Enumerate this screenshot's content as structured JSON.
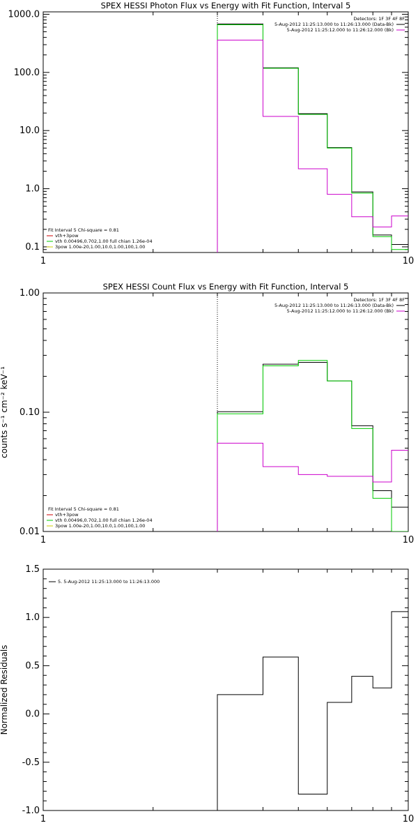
{
  "chart_data": [
    {
      "type": "line",
      "title": "SPEX HESSI Photon Flux vs Energy with Fit Function, Interval 5",
      "xlabel": "",
      "ylabel": "",
      "xscale": "log",
      "yscale": "log",
      "xlim": [
        1,
        10
      ],
      "ylim": [
        0.08,
        1100
      ],
      "x_ticks": [
        1,
        10
      ],
      "x_ticklabels": [
        "1",
        "10"
      ],
      "y_ticks": [
        0.1,
        1,
        10,
        100,
        1000
      ],
      "y_ticklabels": [
        "0.1",
        "1.0",
        "10.0",
        "100.0",
        "1000.0"
      ],
      "x_edges": [
        3,
        4,
        5,
        6,
        7,
        8,
        9,
        10
      ],
      "vline_x": 3,
      "legend_top_right": [
        {
          "text": "Detectors: 1F 3F 4F 8F",
          "color": "#000000"
        },
        {
          "text": "5-Aug-2012 11:25:13.000 to 11:26:13.000 (Data-Bk)",
          "color": "#000000"
        },
        {
          "text": "5-Aug-2012 11:25:12.000 to 11:26:12.000 (Bk)",
          "color": "#cc00cc"
        }
      ],
      "legend_bottom_left": [
        {
          "text": "Fit Interval 5   Chi-square = 0.81",
          "color": "#000000"
        },
        {
          "text": "vth+3pow",
          "color": "#cc0000"
        },
        {
          "text": "vth 0.00496,0.702,1.00   full chian 1.26e-04",
          "color": "#00cc00"
        },
        {
          "text": "3pow 1.00e-20,1.00,10.0,1.00,100,1.00",
          "color": "#cccc00"
        }
      ],
      "series": [
        {
          "name": "5-Aug-2012 11:25:13.000 to 11:26:13.000 (Data-Bk)",
          "color": "#000000",
          "values": [
            680,
            120,
            19.5,
            5.1,
            0.88,
            0.16,
            0.11
          ]
        },
        {
          "name": "vth 0.00496,0.702,1.00   full chian 1.26e-04",
          "color": "#00cc00",
          "values": [
            660,
            118,
            19,
            5.0,
            0.84,
            0.15,
            0.09
          ]
        },
        {
          "name": "5-Aug-2012 11:25:12.000 to 11:26:12.000 (Bk)",
          "color": "#cc00cc",
          "values": [
            360,
            17.5,
            2.2,
            0.8,
            0.33,
            0.22,
            0.34
          ]
        }
      ]
    },
    {
      "type": "line",
      "title": "SPEX HESSI Count Flux vs Energy with Fit Function, Interval 5",
      "xlabel": "",
      "ylabel": "counts s⁻¹ cm⁻² keV⁻¹",
      "xscale": "log",
      "yscale": "log",
      "xlim": [
        1,
        10
      ],
      "ylim": [
        0.01,
        1.0
      ],
      "x_ticks": [
        1,
        10
      ],
      "x_ticklabels": [
        "1",
        "10"
      ],
      "y_ticks": [
        0.01,
        0.1,
        1.0
      ],
      "y_ticklabels": [
        "0.01",
        "0.10",
        "1.00"
      ],
      "x_edges": [
        3,
        4,
        5,
        6,
        7,
        8,
        9,
        10
      ],
      "vline_x": 3,
      "legend_top_right": [
        {
          "text": "Detectors: 1F 3F 4F 8F",
          "color": "#000000"
        },
        {
          "text": "5-Aug-2012 11:25:13.000 to 11:26:13.000 (Data-Bk)",
          "color": "#000000"
        },
        {
          "text": "5-Aug-2012 11:25:12.000 to 11:26:12.000 (Bk)",
          "color": "#cc00cc"
        }
      ],
      "legend_bottom_left": [
        {
          "text": "Fit Interval 5   Chi-square = 0.81",
          "color": "#000000"
        },
        {
          "text": "vth+3pow",
          "color": "#cc0000"
        },
        {
          "text": "vth 0.00496,0.702,1.00   full chian 1.26e-04",
          "color": "#00cc00"
        },
        {
          "text": "3pow 1.00e-20,1.00,10.0,1.00,100,1.00",
          "color": "#cccc00"
        }
      ],
      "series": [
        {
          "name": "5-Aug-2012 11:25:13.000 to 11:26:13.000 (Data-Bk)",
          "color": "#000000",
          "values": [
            0.101,
            0.253,
            0.262,
            0.183,
            0.077,
            0.022,
            0.016
          ]
        },
        {
          "name": "vth 0.00496,0.702,1.00   full chian 1.26e-04",
          "color": "#00cc00",
          "values": [
            0.097,
            0.245,
            0.272,
            0.183,
            0.073,
            0.019,
            0.009
          ]
        },
        {
          "name": "5-Aug-2012 11:25:12.000 to 11:26:12.000 (Bk)",
          "color": "#cc00cc",
          "values": [
            0.055,
            0.035,
            0.03,
            0.029,
            0.029,
            0.026,
            0.048
          ]
        }
      ]
    },
    {
      "type": "line",
      "title": "",
      "xlabel": "",
      "ylabel": "Normalized Residuals",
      "xscale": "log",
      "yscale": "linear",
      "xlim": [
        1,
        10
      ],
      "ylim": [
        -1.0,
        1.5
      ],
      "x_ticks": [
        1,
        10
      ],
      "x_ticklabels": [
        "1",
        "10"
      ],
      "y_ticks": [
        -1.0,
        -0.5,
        0.0,
        0.5,
        1.0,
        1.5
      ],
      "y_ticklabels": [
        "-1.0",
        "-0.5",
        "0.0",
        "0.5",
        "1.0",
        "1.5"
      ],
      "x_edges": [
        3,
        4,
        5,
        6,
        7,
        8,
        9,
        10
      ],
      "legend_top_left": [
        {
          "text": "5.  5-Aug-2012 11:25:13.000 to 11:26:13.000",
          "color": "#000000"
        }
      ],
      "series": [
        {
          "name": "5.  5-Aug-2012 11:25:13.000 to 11:26:13.000",
          "color": "#000000",
          "values": [
            0.2,
            0.59,
            -0.83,
            0.12,
            0.39,
            0.27,
            1.06
          ]
        }
      ]
    }
  ]
}
